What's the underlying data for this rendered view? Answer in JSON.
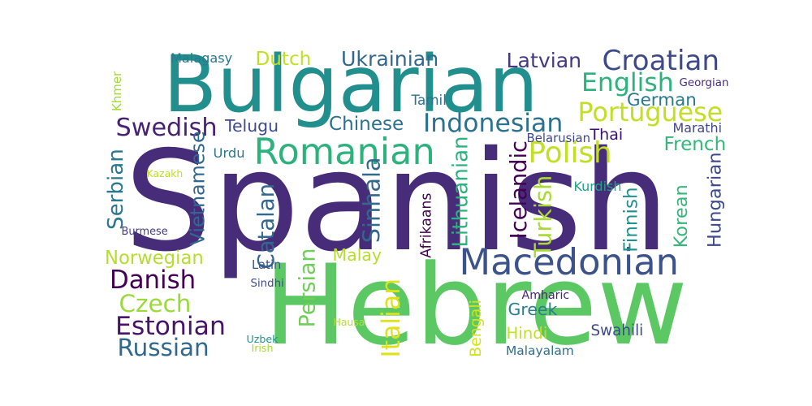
{
  "words": [
    {
      "text": "Spanish",
      "color": "#472c7a"
    },
    {
      "text": "Hebrew",
      "color": "#5cc863"
    },
    {
      "text": "Bulgarian",
      "color": "#218f8d"
    },
    {
      "text": "Macedonian",
      "color": "#3b528b"
    },
    {
      "text": "Romanian",
      "color": "#2db27d"
    },
    {
      "text": "Croatian",
      "color": "#3e4989"
    },
    {
      "text": "Indonesian",
      "color": "#2c728e"
    },
    {
      "text": "Portuguese",
      "color": "#c2df23"
    },
    {
      "text": "English",
      "color": "#2db27d"
    },
    {
      "text": "Polish",
      "color": "#c2df23"
    },
    {
      "text": "Swedish",
      "color": "#482173"
    },
    {
      "text": "Danish",
      "color": "#440154"
    },
    {
      "text": "Estonian",
      "color": "#481467"
    },
    {
      "text": "Russian",
      "color": "#31688e"
    },
    {
      "text": "Czech",
      "color": "#9bd93c"
    },
    {
      "text": "Norwegian",
      "color": "#b5de2b"
    },
    {
      "text": "Ukrainian",
      "color": "#31688e"
    },
    {
      "text": "Latvian",
      "color": "#443a83"
    },
    {
      "text": "German",
      "color": "#2a788e"
    },
    {
      "text": "Chinese",
      "color": "#2c728e"
    },
    {
      "text": "Dutch",
      "color": "#c2df23"
    },
    {
      "text": "French",
      "color": "#35b779"
    },
    {
      "text": "Thai",
      "color": "#3b0f70"
    },
    {
      "text": "Malay",
      "color": "#b5de2b"
    },
    {
      "text": "Greek",
      "color": "#27808e"
    },
    {
      "text": "Hindi",
      "color": "#c2df23"
    },
    {
      "text": "Swahili",
      "color": "#3e4a89"
    },
    {
      "text": "Vietnamese",
      "color": "#31688e"
    },
    {
      "text": "Catalan",
      "color": "#31688e"
    },
    {
      "text": "Sinhala",
      "color": "#31688e"
    },
    {
      "text": "Lithuanian",
      "color": "#2db27d"
    },
    {
      "text": "Icelandic",
      "color": "#440154"
    },
    {
      "text": "Turkish",
      "color": "#a8db34"
    },
    {
      "text": "Finnish",
      "color": "#21918c"
    },
    {
      "text": "Korean",
      "color": "#35b779"
    },
    {
      "text": "Hungarian",
      "color": "#3e4989"
    },
    {
      "text": "Serbian",
      "color": "#2a788e"
    },
    {
      "text": "Persian",
      "color": "#6ece58"
    },
    {
      "text": "Italian",
      "color": "#dde318"
    },
    {
      "text": "Bengali",
      "color": "#d2e21b"
    },
    {
      "text": "Afrikaans",
      "color": "#440154"
    },
    {
      "text": "Telugu",
      "color": "#3e4989"
    },
    {
      "text": "Tamil",
      "color": "#2c728e"
    },
    {
      "text": "Urdu",
      "color": "#2a788e"
    },
    {
      "text": "Malagasy",
      "color": "#2a788e"
    },
    {
      "text": "Georgian",
      "color": "#472d7b"
    },
    {
      "text": "Marathi",
      "color": "#404688"
    },
    {
      "text": "Belarusian",
      "color": "#3f4788"
    },
    {
      "text": "Kurdish",
      "color": "#20a386"
    },
    {
      "text": "Kazakh",
      "color": "#bddf26"
    },
    {
      "text": "Burmese",
      "color": "#443983"
    },
    {
      "text": "Latin",
      "color": "#3b518b"
    },
    {
      "text": "Sindhi",
      "color": "#3e4a89"
    },
    {
      "text": "Amharic",
      "color": "#482475"
    },
    {
      "text": "Hausa",
      "color": "#b5de2b"
    },
    {
      "text": "Uzbek",
      "color": "#21918c"
    },
    {
      "text": "Irish",
      "color": "#a8db34"
    },
    {
      "text": "Malayalam",
      "color": "#2e6f8e"
    },
    {
      "text": "Khmer",
      "color": "#a0da39"
    }
  ]
}
